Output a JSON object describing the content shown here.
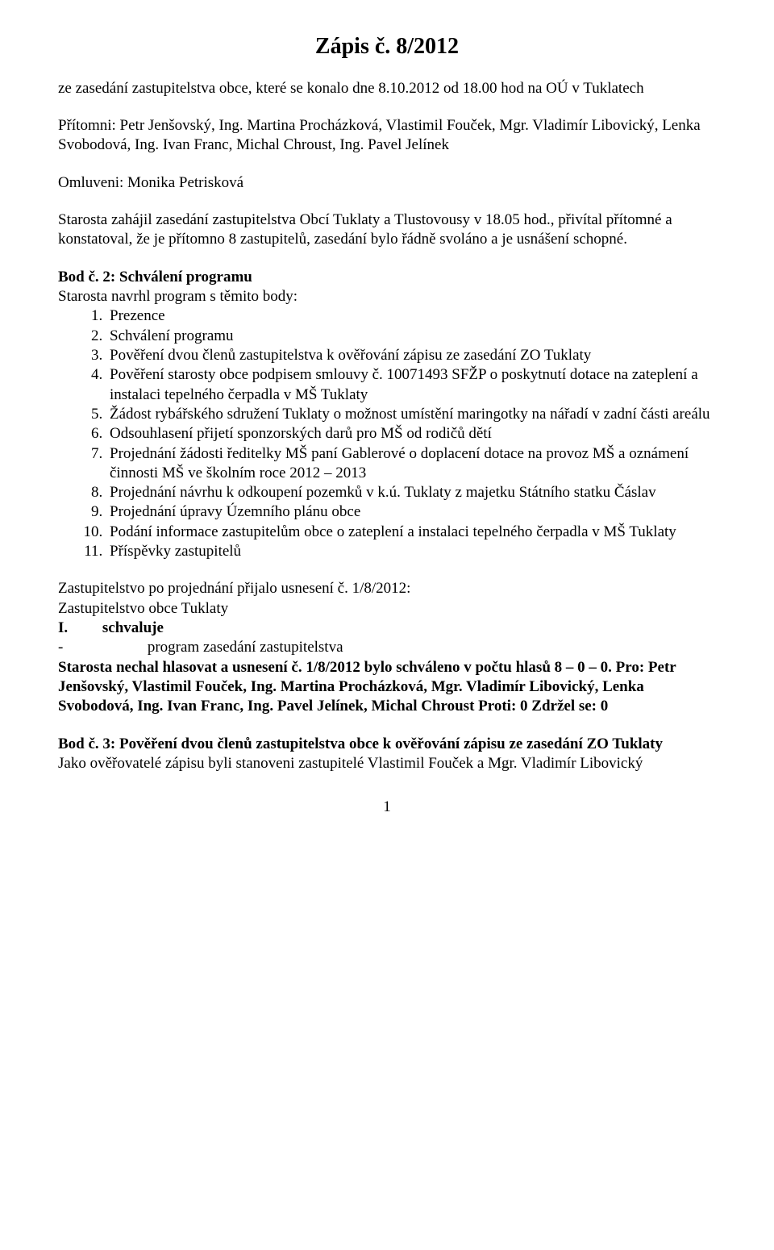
{
  "title": "Zápis č. 8/2012",
  "intro": "ze zasedání zastupitelstva obce, které se konalo dne 8.10.2012 od 18.00 hod na OÚ v Tuklatech",
  "pritomni": "Přítomni: Petr Jenšovský, Ing. Martina Procházková, Vlastimil Fouček, Mgr. Vladimír Libovický, Lenka Svobodová, Ing. Ivan Franc, Michal Chroust, Ing. Pavel Jelínek",
  "omluveni": "Omluveni: Monika Petrisková",
  "starosta_zahajil": "Starosta zahájil zasedání zastupitelstva Obcí Tuklaty a Tlustovousy v 18.05 hod., přivítal přítomné a konstatoval, že je přítomno 8 zastupitelů, zasedání bylo řádně svoláno a je usnášení schopné.",
  "bod2_heading": "Bod č. 2: Schválení programu",
  "bod2_sub": "Starosta navrhl program s těmito body:",
  "program": [
    "Prezence",
    "Schválení programu",
    "Pověření dvou členů zastupitelstva k ověřování zápisu ze zasedání ZO Tuklaty",
    "Pověření starosty obce podpisem smlouvy č. 10071493 SFŽP o poskytnutí dotace na zateplení a instalaci tepelného čerpadla v MŠ Tuklaty",
    "Žádost rybářského sdružení Tuklaty o možnost umístění maringotky na nářadí v zadní části areálu",
    "Odsouhlasení přijetí sponzorských darů pro MŠ od rodičů dětí",
    "Projednání žádosti ředitelky MŠ paní Gablerové o doplacení dotace na provoz MŠ a oznámení činnosti MŠ ve školním roce 2012 – 2013",
    "Projednání návrhu k odkoupení pozemků v k.ú. Tuklaty z majetku Státního statku Čáslav",
    "Projednání úpravy Územního plánu obce",
    "Podání informace zastupitelům obce o zateplení a instalaci tepelného čerpadla v MŠ Tuklaty",
    "Příspěvky zastupitelů"
  ],
  "usneseni_intro": "Zastupitelstvo po projednání přijalo usnesení č. 1/8/2012:",
  "usneseni_line2": "Zastupitelstvo obce Tuklaty",
  "usneseni_roman": "I.",
  "usneseni_schvaluje": "schvaluje",
  "usneseni_dash": "-",
  "usneseni_program": "program zasedání zastupitelstva",
  "hlasovani1": "Starosta nechal hlasovat a usnesení č. 1/8/2012 bylo schváleno v počtu hlasů 8 – 0 – 0. Pro: Petr Jenšovský, Vlastimil Fouček, Ing. Martina Procházková, Mgr. Vladimír Libovický, Lenka Svobodová, Ing. Ivan Franc, Ing. Pavel Jelínek, Michal Chroust Proti: 0 Zdržel se: 0",
  "bod3_heading": "Bod č. 3: Pověření dvou členů zastupitelstva obce k ověřování zápisu ze zasedání ZO Tuklaty",
  "bod3_text": "Jako ověřovatelé zápisu byli stanoveni zastupitelé Vlastimil Fouček a Mgr. Vladimír Libovický",
  "page_number": "1"
}
